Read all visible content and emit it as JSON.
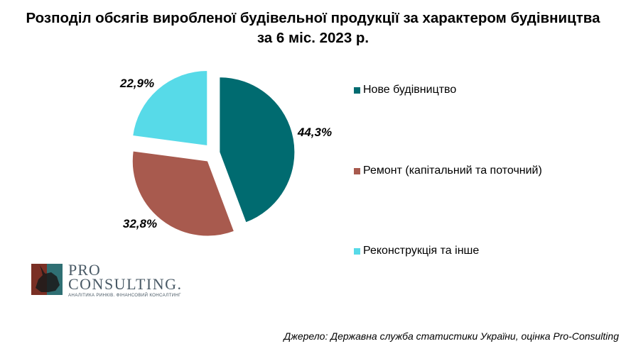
{
  "title": {
    "line1": "Розподіл обсягів виробленої будівельної продукції за характером будівництва",
    "line2": "за 6 міс. 2023 р."
  },
  "chart_data": {
    "type": "pie",
    "title": "Розподіл обсягів виробленої будівельної продукції за характером будівництва за 6 міс. 2023 р.",
    "start_angle_deg": 0,
    "direction": "clockwise",
    "exploded": true,
    "legend_position": "right",
    "slices": [
      {
        "label": "Нове будівництво",
        "value": 44.3,
        "display": "44,3%",
        "color": "#006B70"
      },
      {
        "label": "Ремонт (капітальний та поточний)",
        "value": 32.8,
        "display": "32,8%",
        "color": "#A85A4E"
      },
      {
        "label": "Реконструкція та інше",
        "value": 22.9,
        "display": "22,9%",
        "color": "#57DAE8"
      }
    ]
  },
  "logo": {
    "line1": "PRO",
    "line2": "CONSULTING.",
    "tagline": "АНАЛІТИКА РИНКІВ. ФІНАНСОВИЙ КОНСАЛТИНГ",
    "icon": "rhino-logo-icon"
  },
  "source": "Джерело: Державна служба статистики України, оцінка Pro-Consulting"
}
